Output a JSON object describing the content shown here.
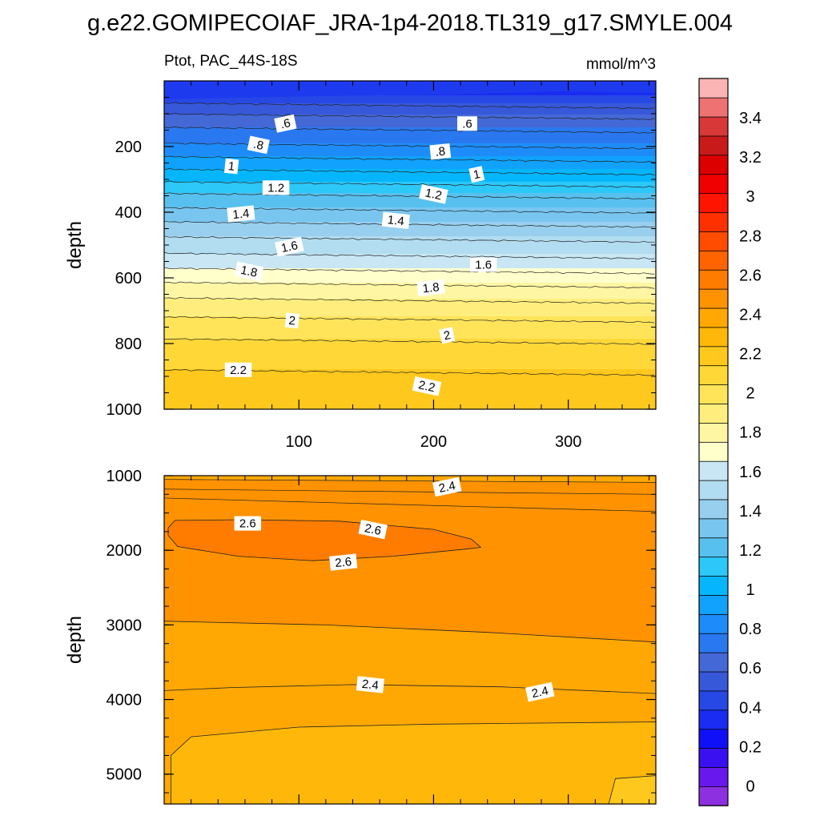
{
  "figure_title": "g.e22.GOMIPECOIAF_JRA-1p4-2018.TL319_g17.SMYLE.004",
  "chart_data": {
    "type": "heatmap",
    "variable": "Ptot",
    "region": "PAC_44S-18S",
    "subtitle_left": "Ptot, PAC_44S-18S",
    "units": "mmol/m^3",
    "xlabel": "",
    "ylabel": "depth",
    "xlim": [
      0,
      365
    ],
    "xticks": [
      100,
      200,
      300
    ],
    "panels": [
      {
        "name": "upper",
        "ylim": [
          1000,
          0
        ],
        "yticks": [
          200,
          400,
          600,
          800,
          1000
        ],
        "depth_profile": [
          [
            30,
            0.35
          ],
          [
            80,
            0.55
          ],
          [
            150,
            0.72
          ],
          [
            200,
            0.82
          ],
          [
            250,
            0.95
          ],
          [
            300,
            1.08
          ],
          [
            350,
            1.22
          ],
          [
            400,
            1.33
          ],
          [
            450,
            1.45
          ],
          [
            500,
            1.55
          ],
          [
            550,
            1.65
          ],
          [
            600,
            1.77
          ],
          [
            650,
            1.88
          ],
          [
            700,
            1.97
          ],
          [
            750,
            2.05
          ],
          [
            800,
            2.12
          ],
          [
            850,
            2.17
          ],
          [
            900,
            2.22
          ],
          [
            950,
            2.27
          ],
          [
            1000,
            2.3
          ]
        ],
        "contour_labels": [
          {
            "text": ".6",
            "x": 90,
            "depth": 130
          },
          {
            "text": ".6",
            "x": 225,
            "depth": 130
          },
          {
            "text": ".8",
            "x": 70,
            "depth": 195
          },
          {
            "text": ".8",
            "x": 205,
            "depth": 215
          },
          {
            "text": "1",
            "x": 50,
            "depth": 260
          },
          {
            "text": "1",
            "x": 232,
            "depth": 285
          },
          {
            "text": "1.2",
            "x": 83,
            "depth": 325
          },
          {
            "text": "1.2",
            "x": 200,
            "depth": 345
          },
          {
            "text": "1.4",
            "x": 57,
            "depth": 405
          },
          {
            "text": "1.4",
            "x": 172,
            "depth": 425
          },
          {
            "text": "1.6",
            "x": 93,
            "depth": 505
          },
          {
            "text": "1.6",
            "x": 237,
            "depth": 560
          },
          {
            "text": "1.8",
            "x": 63,
            "depth": 580
          },
          {
            "text": "1.8",
            "x": 198,
            "depth": 630
          },
          {
            "text": "2",
            "x": 95,
            "depth": 730
          },
          {
            "text": "2",
            "x": 210,
            "depth": 775
          },
          {
            "text": "2.2",
            "x": 55,
            "depth": 880
          },
          {
            "text": "2.2",
            "x": 195,
            "depth": 930
          }
        ]
      },
      {
        "name": "lower",
        "ylim": [
          5400,
          1000
        ],
        "yticks": [
          1000,
          2000,
          3000,
          4000,
          5000
        ],
        "regions": [
          {
            "range": "2.4-2.5",
            "depth": [
              1000,
              1100
            ]
          },
          {
            "range": "2.5-2.6",
            "depth": [
              1100,
              2950
            ]
          },
          {
            "range": "2.6-2.7",
            "depth": [
              1600,
              2150
            ],
            "x": [
              5,
              235
            ]
          },
          {
            "range": "2.4-2.5",
            "depth": [
              3000,
              4300
            ]
          },
          {
            "range": "2.3-2.4",
            "depth": [
              4300,
              5400
            ]
          }
        ],
        "contour_labels": [
          {
            "text": "2.4",
            "x": 210,
            "depth": 1150
          },
          {
            "text": "2.6",
            "x": 62,
            "depth": 1640
          },
          {
            "text": "2.6",
            "x": 155,
            "depth": 1720
          },
          {
            "text": "2.6",
            "x": 133,
            "depth": 2160
          },
          {
            "text": "2.4",
            "x": 153,
            "depth": 3800
          },
          {
            "text": "2.4",
            "x": 279,
            "depth": 3900
          }
        ]
      }
    ],
    "colorbar": {
      "levels": [
        -0.1,
        0,
        0.1,
        0.2,
        0.3,
        0.4,
        0.5,
        0.6,
        0.7,
        0.8,
        0.9,
        1,
        1.1,
        1.2,
        1.3,
        1.4,
        1.5,
        1.6,
        1.7,
        1.8,
        1.9,
        2,
        2.1,
        2.2,
        2.3,
        2.4,
        2.5,
        2.6,
        2.7,
        2.8,
        2.9,
        3,
        3.1,
        3.2,
        3.3,
        3.4,
        3.5,
        3.6
      ],
      "tick_labels": [
        "0",
        "0.2",
        "0.4",
        "0.6",
        "0.8",
        "1",
        "1.2",
        "1.4",
        "1.6",
        "1.8",
        "2",
        "2.2",
        "2.4",
        "2.6",
        "2.8",
        "3",
        "3.2",
        "3.4"
      ],
      "colors": [
        "#8C30E0",
        "#6818EC",
        "#3A10F0",
        "#1010F8",
        "#1A2CF2",
        "#2848E6",
        "#3858DA",
        "#4468D6",
        "#2A78F0",
        "#1E8CF8",
        "#10A2FC",
        "#06B6FC",
        "#2CC8F8",
        "#58C0EE",
        "#78C6F0",
        "#98CFEE",
        "#B2DCF0",
        "#C8E6F4",
        "#FFFFCC",
        "#FFF6A4",
        "#FFEE7E",
        "#FFE45A",
        "#FFD838",
        "#FFC81C",
        "#FFB80A",
        "#FFA804",
        "#FF9200",
        "#FF7C00",
        "#FF6400",
        "#FF4C00",
        "#FF3000",
        "#FF1400",
        "#F00000",
        "#DC0000",
        "#C81A1A",
        "#D83838",
        "#EE7272",
        "#FBB4B4"
      ]
    }
  }
}
